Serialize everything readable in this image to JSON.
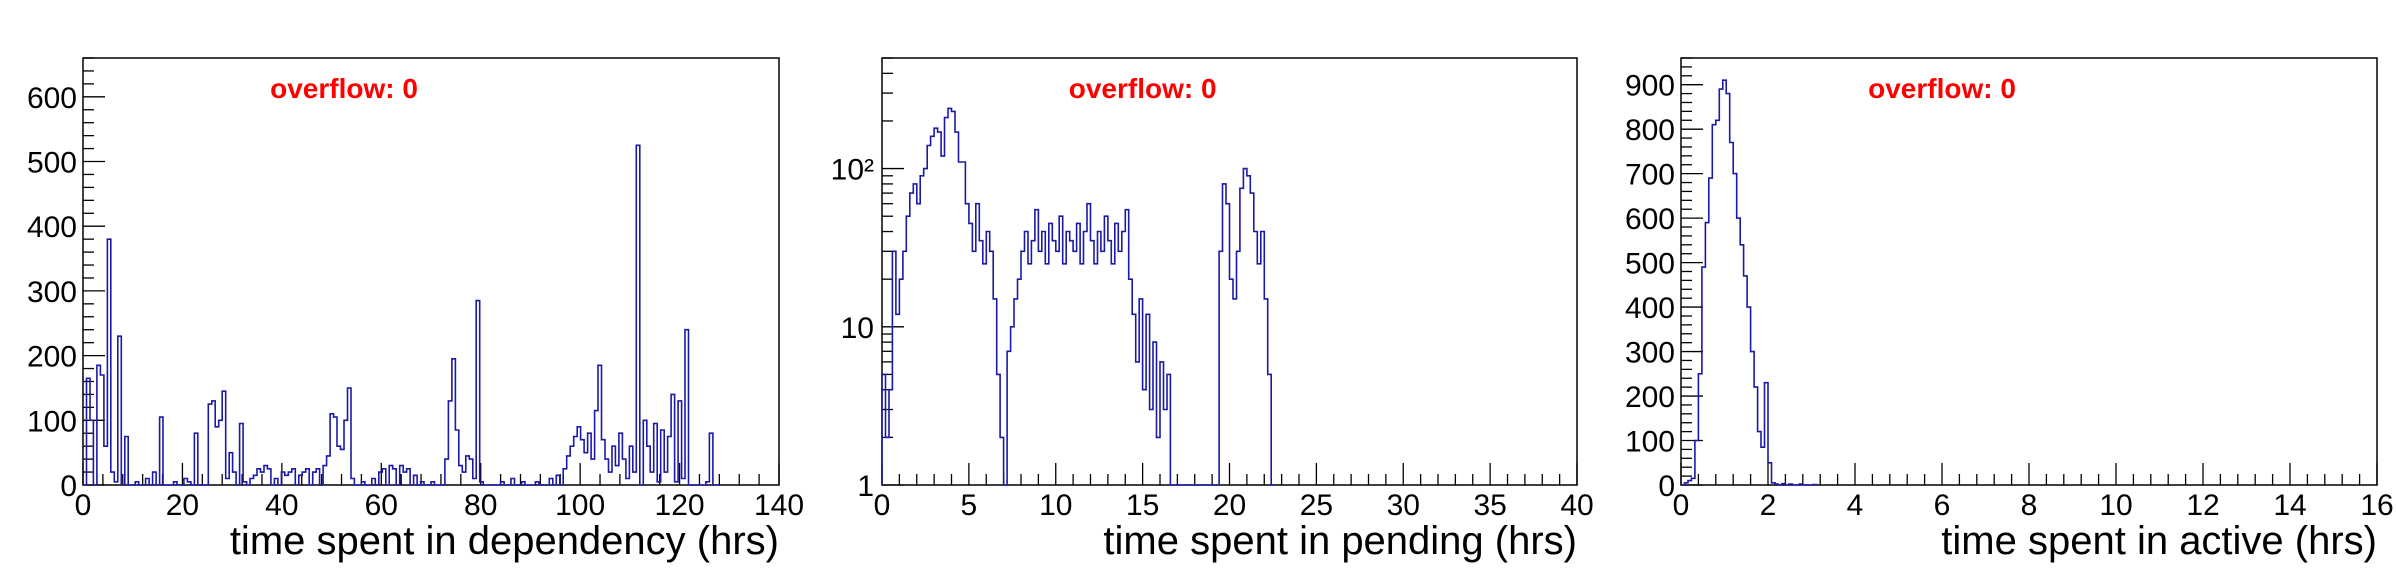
{
  "colors": {
    "line": "#1a1aa6",
    "frame": "#000000",
    "overflow": "#ff0000"
  },
  "chart_data": [
    {
      "type": "histogram",
      "xlabel": "time spent in dependency (hrs)",
      "annotation": "overflow: 0",
      "xlim": [
        0,
        140
      ],
      "ylim": [
        0,
        660
      ],
      "yscale": "linear",
      "x_ticks": [
        0,
        20,
        40,
        60,
        80,
        100,
        120,
        140
      ],
      "y_ticks": [
        0,
        100,
        200,
        300,
        400,
        500,
        600
      ],
      "grid": false,
      "legend": "none",
      "bin_width": 0.7,
      "points": [
        [
          0,
          0
        ],
        [
          0.7,
          165
        ],
        [
          1.4,
          100
        ],
        [
          2.1,
          0
        ],
        [
          2.8,
          185
        ],
        [
          3.5,
          170
        ],
        [
          4.2,
          60
        ],
        [
          4.9,
          380
        ],
        [
          5.6,
          20
        ],
        [
          6.3,
          5
        ],
        [
          7,
          230
        ],
        [
          7.7,
          0
        ],
        [
          8.4,
          75
        ],
        [
          9.1,
          0
        ],
        [
          10.5,
          5
        ],
        [
          12.6,
          10
        ],
        [
          14,
          20
        ],
        [
          15.4,
          105
        ],
        [
          16.1,
          0
        ],
        [
          18.2,
          5
        ],
        [
          20.3,
          10
        ],
        [
          21,
          5
        ],
        [
          22.4,
          80
        ],
        [
          23.1,
          0
        ],
        [
          25.2,
          125
        ],
        [
          25.9,
          130
        ],
        [
          26.6,
          90
        ],
        [
          27.3,
          100
        ],
        [
          28,
          145
        ],
        [
          28.7,
          10
        ],
        [
          29.4,
          50
        ],
        [
          30.1,
          20
        ],
        [
          31.5,
          95
        ],
        [
          32.2,
          5
        ],
        [
          33.6,
          10
        ],
        [
          34.3,
          15
        ],
        [
          35,
          25
        ],
        [
          35.7,
          20
        ],
        [
          36.4,
          30
        ],
        [
          37.1,
          25
        ],
        [
          38.5,
          10
        ],
        [
          39.9,
          20
        ],
        [
          40.6,
          15
        ],
        [
          41.3,
          20
        ],
        [
          42,
          25
        ],
        [
          43.4,
          15
        ],
        [
          44.1,
          20
        ],
        [
          44.8,
          25
        ],
        [
          46.2,
          20
        ],
        [
          46.9,
          25
        ],
        [
          48.3,
          30
        ],
        [
          49,
          45
        ],
        [
          49.7,
          110
        ],
        [
          50.4,
          105
        ],
        [
          51.1,
          60
        ],
        [
          51.8,
          55
        ],
        [
          52.5,
          100
        ],
        [
          53.2,
          150
        ],
        [
          53.9,
          10
        ],
        [
          56,
          5
        ],
        [
          58.1,
          10
        ],
        [
          59.5,
          20
        ],
        [
          60.2,
          25
        ],
        [
          61.6,
          30
        ],
        [
          62.3,
          25
        ],
        [
          63.7,
          30
        ],
        [
          64.4,
          20
        ],
        [
          65.1,
          25
        ],
        [
          66.5,
          15
        ],
        [
          67.9,
          5
        ],
        [
          70,
          5
        ],
        [
          72.8,
          40
        ],
        [
          73.5,
          130
        ],
        [
          74.2,
          195
        ],
        [
          74.9,
          85
        ],
        [
          75.6,
          30
        ],
        [
          76.3,
          20
        ],
        [
          77,
          45
        ],
        [
          77.7,
          40
        ],
        [
          78.4,
          10
        ],
        [
          79.1,
          285
        ],
        [
          79.8,
          5
        ],
        [
          84,
          5
        ],
        [
          86.1,
          10
        ],
        [
          88.2,
          5
        ],
        [
          91,
          5
        ],
        [
          93.8,
          10
        ],
        [
          95.2,
          15
        ],
        [
          96.6,
          25
        ],
        [
          97.3,
          45
        ],
        [
          98,
          60
        ],
        [
          98.7,
          75
        ],
        [
          99.4,
          90
        ],
        [
          100.1,
          70
        ],
        [
          100.8,
          50
        ],
        [
          101.5,
          80
        ],
        [
          102.2,
          40
        ],
        [
          102.9,
          115
        ],
        [
          103.6,
          185
        ],
        [
          104.3,
          70
        ],
        [
          105,
          40
        ],
        [
          105.7,
          20
        ],
        [
          106.4,
          60
        ],
        [
          107.1,
          30
        ],
        [
          107.8,
          80
        ],
        [
          108.5,
          40
        ],
        [
          109.2,
          10
        ],
        [
          109.9,
          60
        ],
        [
          110.6,
          20
        ],
        [
          111.3,
          525
        ],
        [
          112,
          0
        ],
        [
          112.7,
          100
        ],
        [
          113.4,
          60
        ],
        [
          114.1,
          20
        ],
        [
          114.8,
          95
        ],
        [
          115.5,
          5
        ],
        [
          116.2,
          85
        ],
        [
          116.9,
          20
        ],
        [
          117.6,
          75
        ],
        [
          118.3,
          140
        ],
        [
          119,
          5
        ],
        [
          119.7,
          130
        ],
        [
          120.4,
          10
        ],
        [
          121.1,
          240
        ],
        [
          121.8,
          0
        ],
        [
          125.3,
          5
        ],
        [
          126,
          80
        ],
        [
          126.7,
          0
        ],
        [
          127.4,
          0
        ]
      ]
    },
    {
      "type": "histogram",
      "xlabel": "time spent in pending (hrs)",
      "annotation": "overflow: 0",
      "xlim": [
        0,
        40
      ],
      "ylim": [
        1,
        500
      ],
      "yscale": "log",
      "x_ticks": [
        0,
        5,
        10,
        15,
        20,
        25,
        30,
        35,
        40
      ],
      "y_ticks": [
        1,
        10,
        100
      ],
      "grid": false,
      "legend": "none",
      "bin_width": 0.2,
      "points": [
        [
          0,
          5
        ],
        [
          0.2,
          2
        ],
        [
          0.4,
          4
        ],
        [
          0.6,
          30
        ],
        [
          0.8,
          12
        ],
        [
          1,
          20
        ],
        [
          1.2,
          30
        ],
        [
          1.4,
          50
        ],
        [
          1.6,
          70
        ],
        [
          1.8,
          80
        ],
        [
          2,
          60
        ],
        [
          2.2,
          90
        ],
        [
          2.4,
          100
        ],
        [
          2.6,
          140
        ],
        [
          2.8,
          160
        ],
        [
          3,
          180
        ],
        [
          3.2,
          170
        ],
        [
          3.4,
          120
        ],
        [
          3.6,
          210
        ],
        [
          3.8,
          240
        ],
        [
          4,
          230
        ],
        [
          4.2,
          170
        ],
        [
          4.4,
          110
        ],
        [
          4.6,
          110
        ],
        [
          4.8,
          60
        ],
        [
          5,
          45
        ],
        [
          5.2,
          30
        ],
        [
          5.4,
          60
        ],
        [
          5.6,
          35
        ],
        [
          5.8,
          25
        ],
        [
          6,
          40
        ],
        [
          6.2,
          30
        ],
        [
          6.4,
          15
        ],
        [
          6.6,
          5
        ],
        [
          6.8,
          2
        ],
        [
          7,
          1
        ],
        [
          7.2,
          7
        ],
        [
          7.4,
          10
        ],
        [
          7.6,
          15
        ],
        [
          7.8,
          20
        ],
        [
          8,
          30
        ],
        [
          8.2,
          40
        ],
        [
          8.4,
          25
        ],
        [
          8.6,
          35
        ],
        [
          8.8,
          55
        ],
        [
          9,
          30
        ],
        [
          9.2,
          40
        ],
        [
          9.4,
          25
        ],
        [
          9.6,
          45
        ],
        [
          9.8,
          35
        ],
        [
          10,
          30
        ],
        [
          10.2,
          50
        ],
        [
          10.4,
          25
        ],
        [
          10.6,
          40
        ],
        [
          10.8,
          35
        ],
        [
          11,
          30
        ],
        [
          11.2,
          45
        ],
        [
          11.4,
          25
        ],
        [
          11.6,
          40
        ],
        [
          11.8,
          60
        ],
        [
          12,
          35
        ],
        [
          12.2,
          25
        ],
        [
          12.4,
          40
        ],
        [
          12.6,
          30
        ],
        [
          12.8,
          50
        ],
        [
          13,
          35
        ],
        [
          13.2,
          25
        ],
        [
          13.4,
          45
        ],
        [
          13.6,
          30
        ],
        [
          13.8,
          40
        ],
        [
          14,
          55
        ],
        [
          14.2,
          20
        ],
        [
          14.4,
          12
        ],
        [
          14.6,
          6
        ],
        [
          14.8,
          15
        ],
        [
          15,
          4
        ],
        [
          15.2,
          12
        ],
        [
          15.4,
          3
        ],
        [
          15.6,
          8
        ],
        [
          15.8,
          2
        ],
        [
          16,
          6
        ],
        [
          16.2,
          3
        ],
        [
          16.4,
          5
        ],
        [
          16.6,
          1
        ],
        [
          16.8,
          1
        ],
        [
          19.2,
          1
        ],
        [
          19.4,
          30
        ],
        [
          19.6,
          80
        ],
        [
          19.8,
          60
        ],
        [
          20,
          20
        ],
        [
          20.2,
          15
        ],
        [
          20.4,
          30
        ],
        [
          20.6,
          75
        ],
        [
          20.8,
          100
        ],
        [
          21,
          90
        ],
        [
          21.2,
          70
        ],
        [
          21.4,
          40
        ],
        [
          21.6,
          25
        ],
        [
          21.8,
          40
        ],
        [
          22,
          15
        ],
        [
          22.2,
          5
        ],
        [
          22.4,
          1
        ]
      ]
    },
    {
      "type": "histogram",
      "xlabel": "time spent in active (hrs)",
      "annotation": "overflow: 0",
      "xlim": [
        0,
        16
      ],
      "ylim": [
        0,
        960
      ],
      "yscale": "linear",
      "x_ticks": [
        0,
        2,
        4,
        6,
        8,
        10,
        12,
        14,
        16
      ],
      "y_ticks": [
        0,
        100,
        200,
        300,
        400,
        500,
        600,
        700,
        800,
        900
      ],
      "grid": false,
      "legend": "none",
      "bin_width": 0.08,
      "points": [
        [
          0,
          0
        ],
        [
          0.08,
          5
        ],
        [
          0.16,
          10
        ],
        [
          0.24,
          15
        ],
        [
          0.32,
          100
        ],
        [
          0.4,
          250
        ],
        [
          0.48,
          490
        ],
        [
          0.56,
          590
        ],
        [
          0.64,
          690
        ],
        [
          0.72,
          810
        ],
        [
          0.8,
          820
        ],
        [
          0.88,
          890
        ],
        [
          0.96,
          910
        ],
        [
          1.04,
          880
        ],
        [
          1.12,
          770
        ],
        [
          1.2,
          700
        ],
        [
          1.28,
          600
        ],
        [
          1.36,
          540
        ],
        [
          1.44,
          470
        ],
        [
          1.52,
          400
        ],
        [
          1.6,
          300
        ],
        [
          1.68,
          220
        ],
        [
          1.76,
          120
        ],
        [
          1.84,
          85
        ],
        [
          1.92,
          230
        ],
        [
          2,
          50
        ],
        [
          2.08,
          5
        ],
        [
          2.16,
          2
        ],
        [
          2.32,
          3
        ],
        [
          2.48,
          2
        ],
        [
          2.72,
          2
        ],
        [
          3.04,
          1
        ]
      ]
    }
  ]
}
